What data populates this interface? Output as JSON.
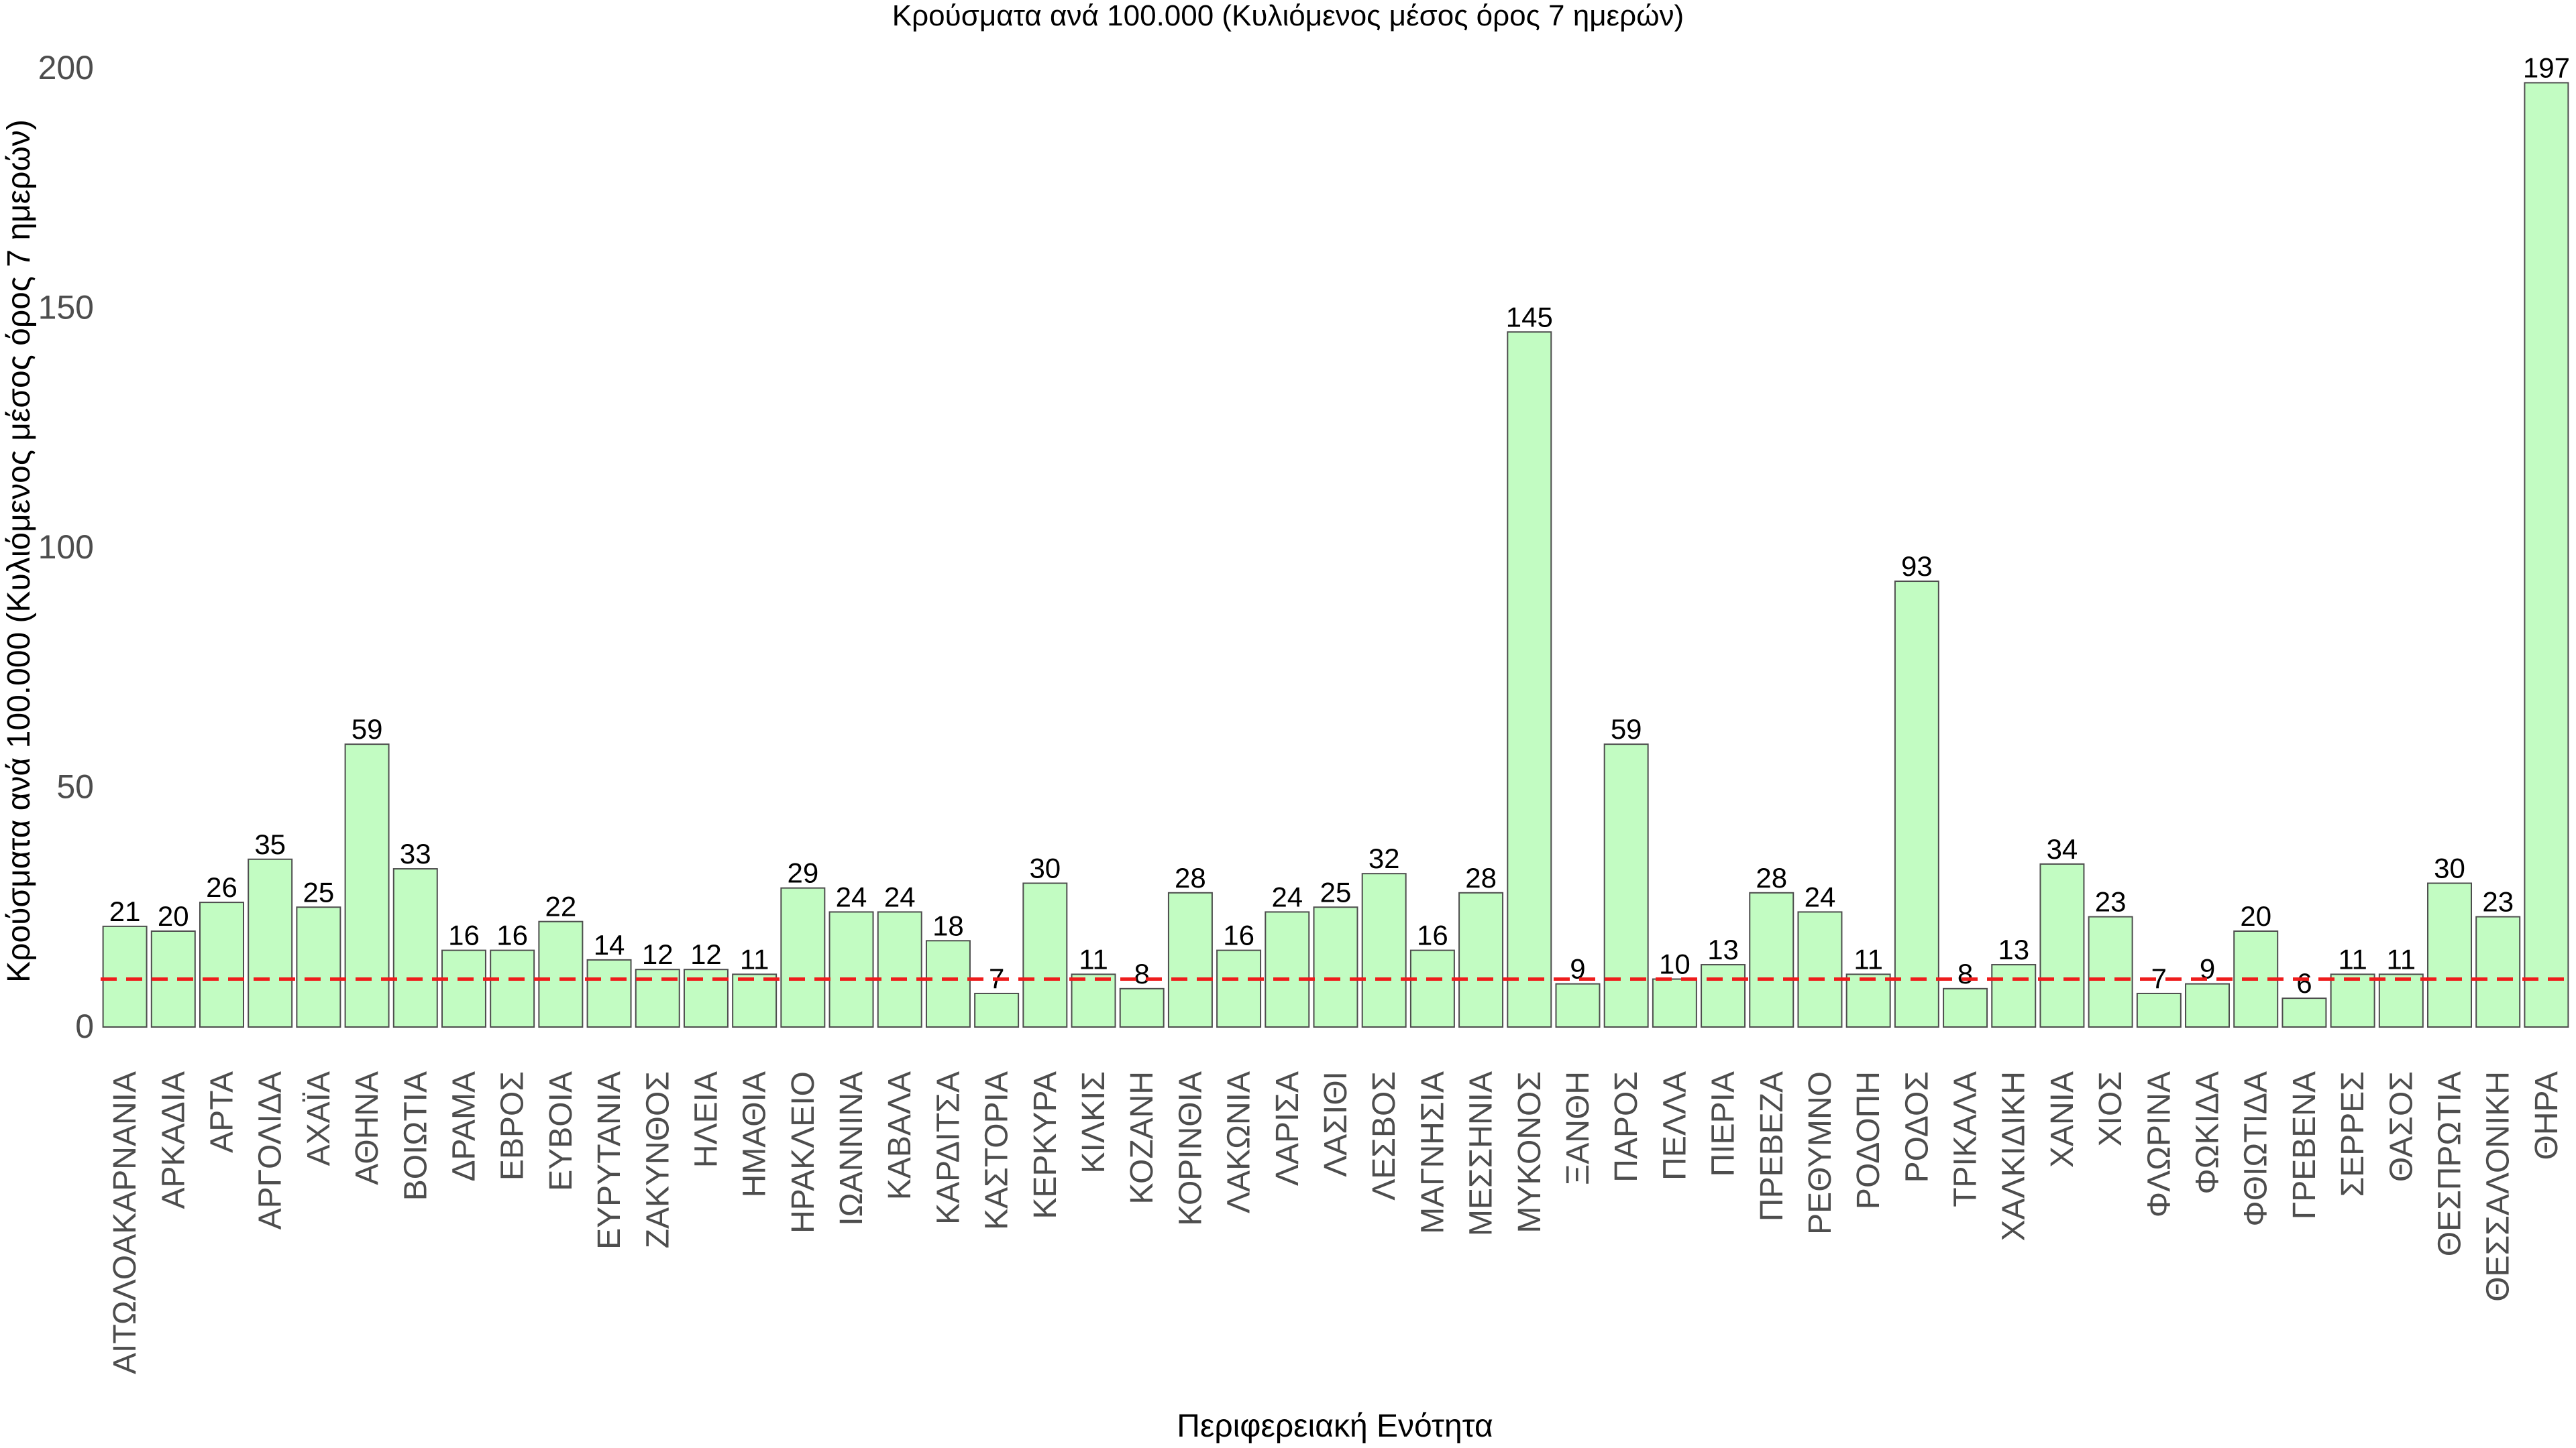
{
  "chart_data": {
    "type": "bar",
    "title": "Κρούσματα ανά 100.000 (Κυλιόμενος μέσος όρος 7 ημερών)",
    "xlabel": "Περιφερειακή Ενότητα",
    "ylabel": "Κρούσματα ανά 100.000 (Κυλιόμενος μέσος όρος 7 ημερών)",
    "ylim": [
      0,
      200
    ],
    "yticks": [
      "0",
      "50",
      "100",
      "150",
      "200"
    ],
    "reference_line": {
      "value": 10,
      "style": "dashed",
      "color": "#ee1c1c"
    },
    "bar_fill": "#c2fcc2",
    "bar_stroke": "#4d4d4d",
    "grid": false,
    "categories": [
      "ΑΙΤΩΛΟΑΚΑΡΝΑΝΙΑ",
      "ΑΡΚΑΔΙΑ",
      "ΑΡΤΑ",
      "ΑΡΓΟΛΙΔΑ",
      "ΑΧΑΪΑ",
      "ΑΘΗΝΑ",
      "ΒΟΙΩΤΙΑ",
      "ΔΡΑΜΑ",
      "ΕΒΡΟΣ",
      "ΕΥΒΟΙΑ",
      "ΕΥΡΥΤΑΝΙΑ",
      "ΖΑΚΥΝΘΟΣ",
      "ΗΛΕΙΑ",
      "ΗΜΑΘΙΑ",
      "ΗΡΑΚΛΕΙΟ",
      "ΙΩΑΝΝΙΝΑ",
      "ΚΑΒΑΛΑ",
      "ΚΑΡΔΙΤΣΑ",
      "ΚΑΣΤΟΡΙΑ",
      "ΚΕΡΚΥΡΑ",
      "ΚΙΛΚΙΣ",
      "ΚΟΖΑΝΗ",
      "ΚΟΡΙΝΘΙΑ",
      "ΛΑΚΩΝΙΑ",
      "ΛΑΡΙΣΑ",
      "ΛΑΣΙΘΙ",
      "ΛΕΣΒΟΣ",
      "ΜΑΓΝΗΣΙΑ",
      "ΜΕΣΣΗΝΙΑ",
      "ΜΥΚΟΝΟΣ",
      "ΞΑΝΘΗ",
      "ΠΑΡΟΣ",
      "ΠΕΛΛΑ",
      "ΠΙΕΡΙΑ",
      "ΠΡΕΒΕΖΑ",
      "ΡΕΘΥΜΝΟ",
      "ΡΟΔΟΠΗ",
      "ΡΟΔΟΣ",
      "ΤΡΙΚΑΛΑ",
      "ΧΑΛΚΙΔΙΚΗ",
      "ΧΑΝΙΑ",
      "ΧΙΟΣ",
      "ΦΛΩΡΙΝΑ",
      "ΦΩΚΙΔΑ",
      "ΦΘΙΩΤΙΔΑ",
      "ΓΡΕΒΕΝΑ",
      "ΣΕΡΡΕΣ",
      "ΘΑΣΟΣ",
      "ΘΕΣΠΡΩΤΙΑ",
      "ΘΕΣΣΑΛΟΝΙΚΗ",
      "ΘΗΡΑ"
    ],
    "values": [
      21,
      20,
      26,
      35,
      25,
      59,
      33,
      16,
      16,
      22,
      14,
      12,
      12,
      11,
      29,
      24,
      24,
      18,
      7,
      30,
      11,
      8,
      28,
      16,
      24,
      25,
      32,
      16,
      28,
      145,
      9,
      59,
      10,
      13,
      28,
      24,
      11,
      93,
      8,
      13,
      34,
      23,
      7,
      9,
      20,
      6,
      11,
      11,
      30,
      23,
      197
    ]
  }
}
